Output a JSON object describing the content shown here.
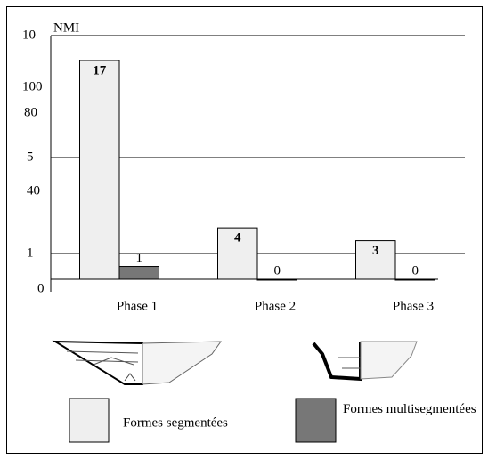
{
  "chart_data": {
    "type": "bar",
    "y_axis_title": "NMI",
    "y_axis_labels": [
      "10",
      "100",
      "80",
      "5",
      "40",
      "1",
      "0"
    ],
    "categories": [
      "Phase 1",
      "Phase 2",
      "Phase 3"
    ],
    "series": [
      {
        "name": "Formes segmentées",
        "color": "#efefef",
        "values": [
          17,
          4,
          3
        ]
      },
      {
        "name": "Formes multisegmentées",
        "color": "#777777",
        "values": [
          1,
          0,
          0
        ]
      }
    ],
    "ylim": [
      0,
      18
    ]
  }
}
